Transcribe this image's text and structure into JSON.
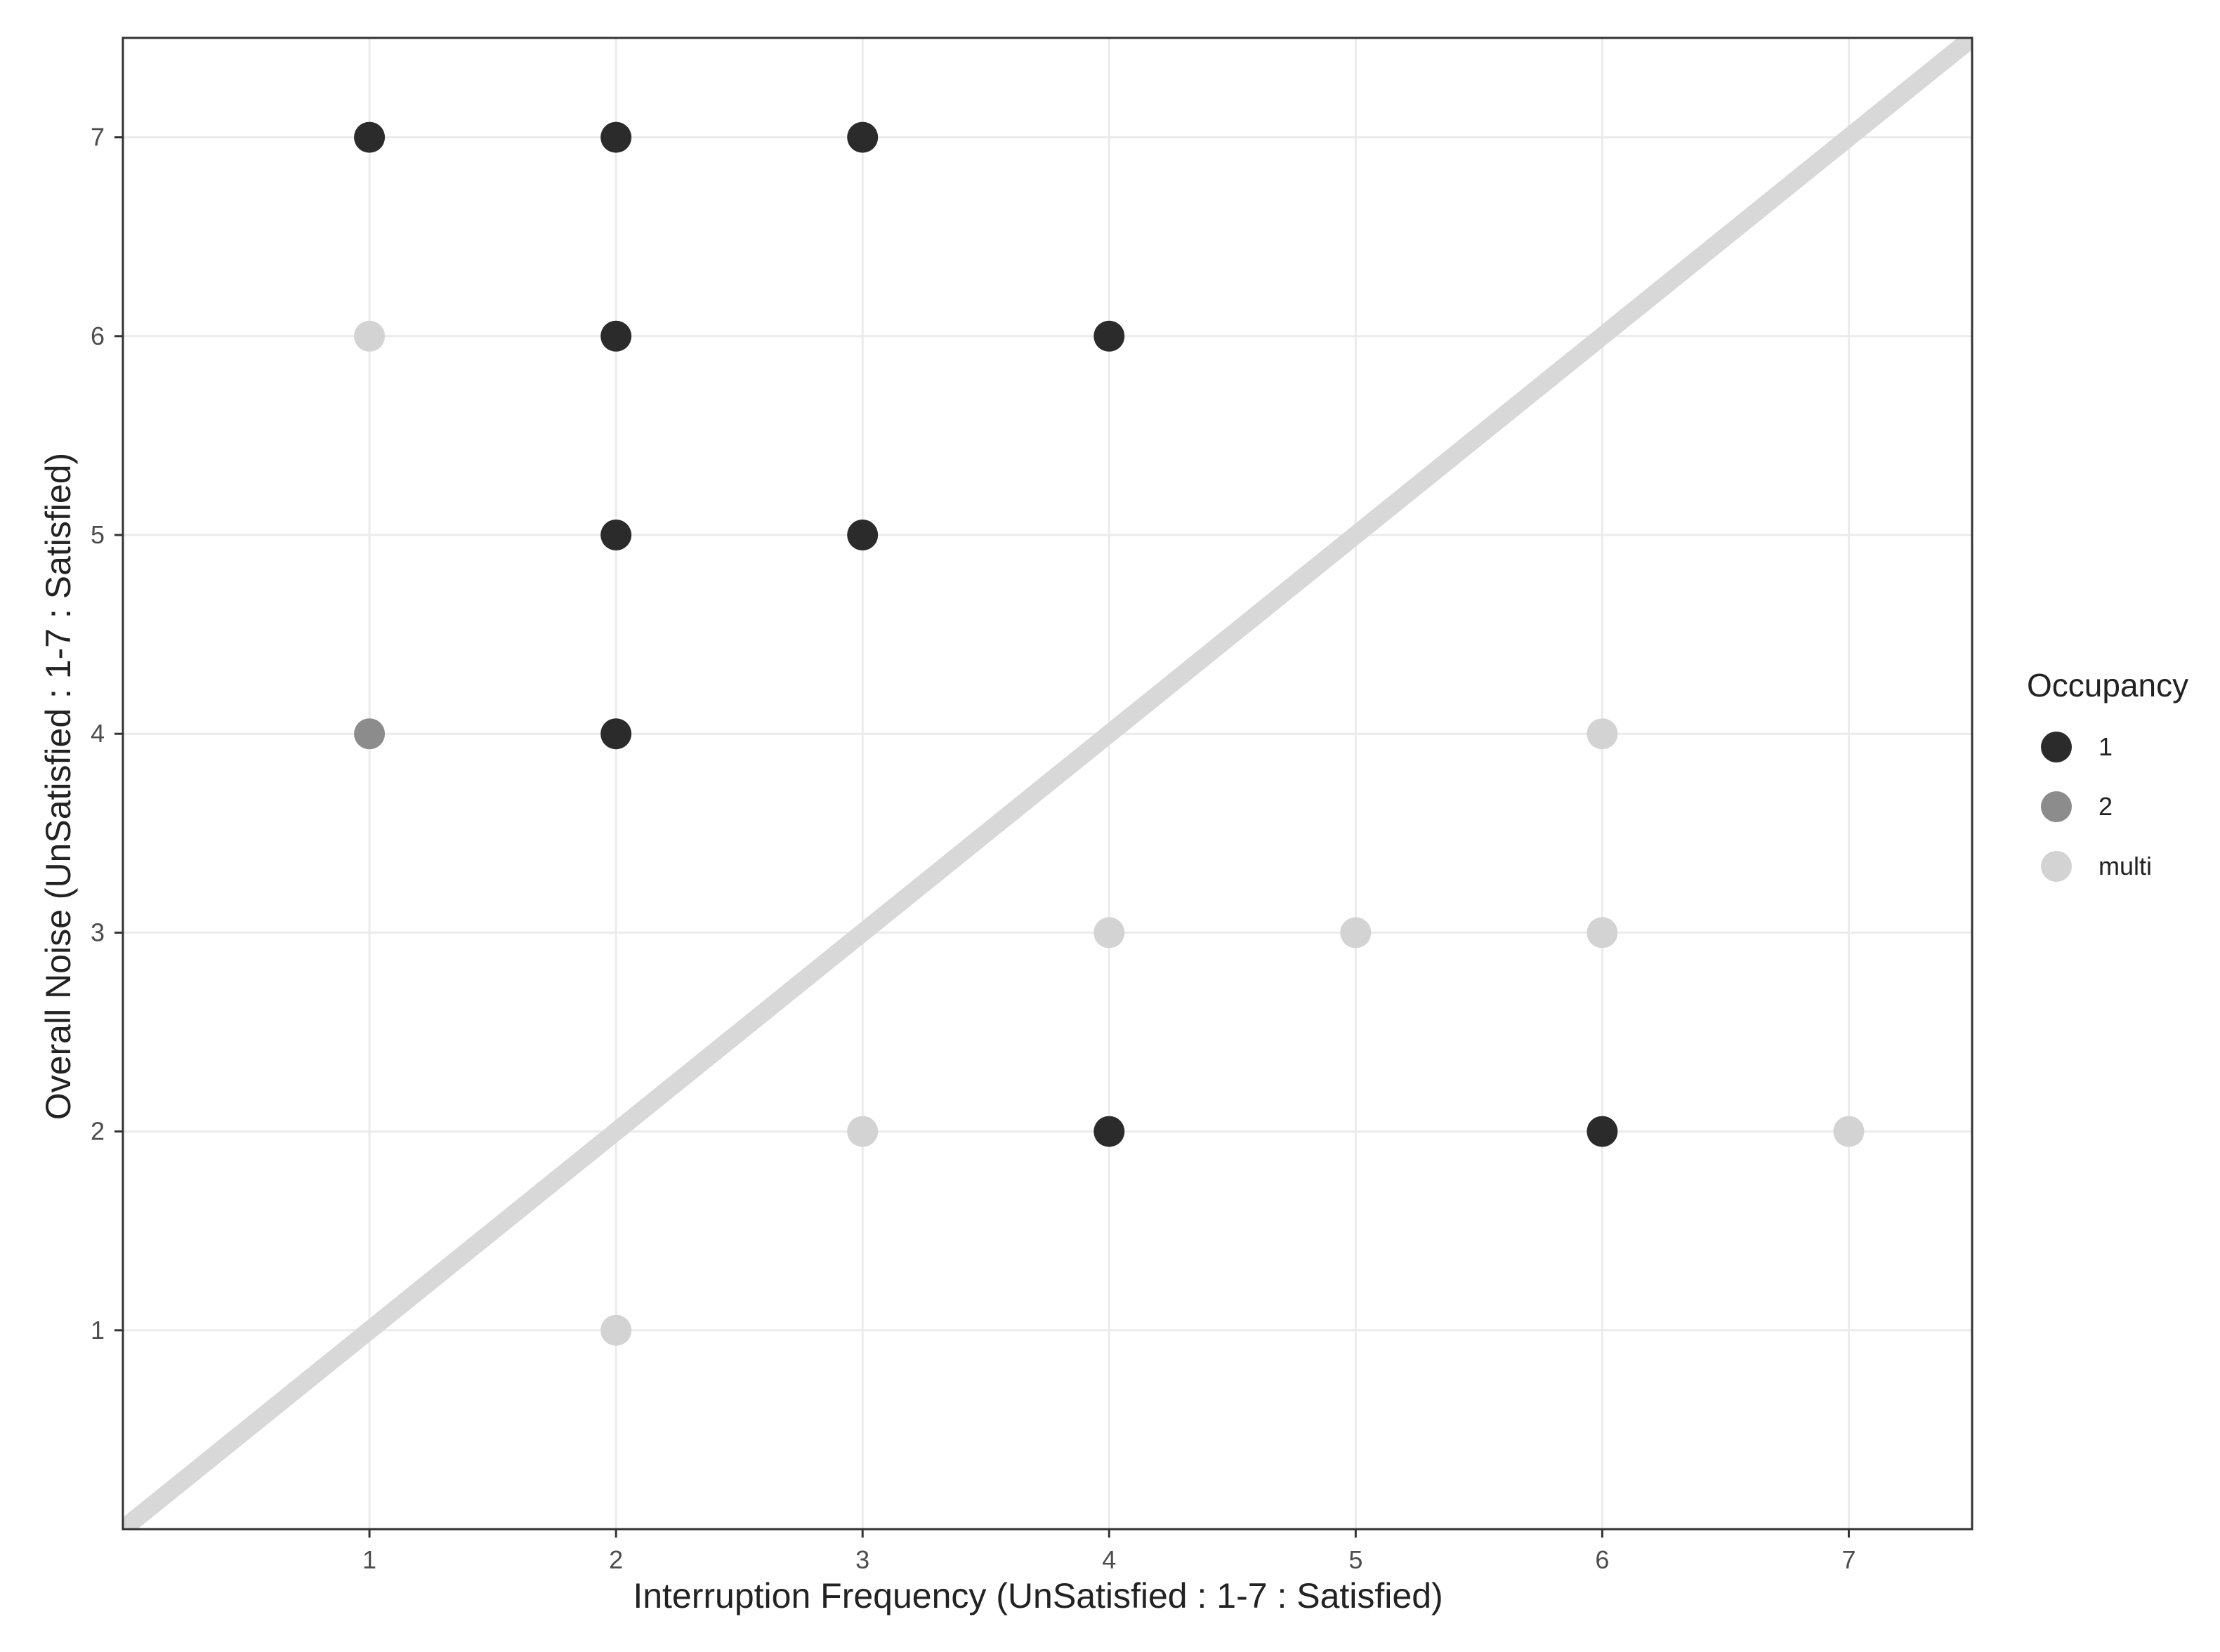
{
  "chart_data": {
    "type": "scatter",
    "title": "",
    "xlabel": "Interruption Frequency (UnSatisfied : 1-7 : Satisfied)",
    "ylabel": "Overall Noise (UnSatisfied : 1-7 : Satisfied)",
    "xlim": [
      0,
      7.5
    ],
    "ylim": [
      0,
      7.5
    ],
    "x_ticks": [
      "1",
      "2",
      "3",
      "4",
      "5",
      "6",
      "7"
    ],
    "y_ticks": [
      "1",
      "2",
      "3",
      "4",
      "5",
      "6",
      "7"
    ],
    "grid": true,
    "reference_line": {
      "type": "identity",
      "slope": 1,
      "intercept": 0,
      "color": "#d8d8d8"
    },
    "legend": {
      "title": "Occupancy",
      "position": "right",
      "entries": [
        {
          "label": "1",
          "color": "#2b2b2b"
        },
        {
          "label": "2",
          "color": "#8c8c8c"
        },
        {
          "label": "multi",
          "color": "#d3d3d3"
        }
      ]
    },
    "series": [
      {
        "name": "1",
        "color": "#2b2b2b",
        "points": [
          {
            "x": 1,
            "y": 7
          },
          {
            "x": 2,
            "y": 7
          },
          {
            "x": 3,
            "y": 7
          },
          {
            "x": 2,
            "y": 6
          },
          {
            "x": 4,
            "y": 6
          },
          {
            "x": 2,
            "y": 5
          },
          {
            "x": 3,
            "y": 5
          },
          {
            "x": 2,
            "y": 4
          },
          {
            "x": 4,
            "y": 2
          },
          {
            "x": 6,
            "y": 2
          }
        ]
      },
      {
        "name": "2",
        "color": "#8c8c8c",
        "points": [
          {
            "x": 1,
            "y": 4
          }
        ]
      },
      {
        "name": "multi",
        "color": "#d3d3d3",
        "points": [
          {
            "x": 1,
            "y": 6
          },
          {
            "x": 6,
            "y": 4
          },
          {
            "x": 4,
            "y": 3
          },
          {
            "x": 5,
            "y": 3
          },
          {
            "x": 6,
            "y": 3
          },
          {
            "x": 3,
            "y": 2
          },
          {
            "x": 7,
            "y": 2
          },
          {
            "x": 2,
            "y": 1
          }
        ]
      }
    ]
  }
}
